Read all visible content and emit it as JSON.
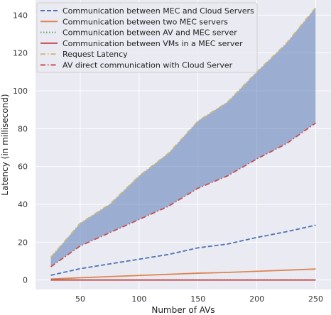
{
  "chart_data": {
    "type": "line",
    "title": "",
    "xlabel": "Number of AVs",
    "ylabel": "Latency (in millisecond)",
    "xlim": [
      12,
      263
    ],
    "ylim": [
      -5,
      148
    ],
    "xticks": [
      50,
      100,
      150,
      200,
      250
    ],
    "yticks": [
      0,
      20,
      40,
      60,
      80,
      100,
      120,
      140
    ],
    "grid": true,
    "background": "#eaeaf2",
    "legend_position": "top-left",
    "fill_between": {
      "lower_series": "AV direct communication with Cloud Server",
      "upper_series": "Request Latency",
      "color": "#4c72b0",
      "opacity": 0.5
    },
    "x": [
      25,
      50,
      75,
      100,
      125,
      150,
      175,
      200,
      225,
      250
    ],
    "series": [
      {
        "name": "Communication between MEC and Cloud Servers",
        "color": "#4c72b0",
        "style": "dashed",
        "values": [
          2.5,
          6,
          8.5,
          11,
          13.5,
          17,
          19,
          22.5,
          25.5,
          29
        ]
      },
      {
        "name": "Communication between two MEC servers",
        "color": "#dd8452",
        "style": "solid",
        "values": [
          0.5,
          1.2,
          1.8,
          2.4,
          3,
          3.6,
          4,
          4.6,
          5.2,
          5.8
        ]
      },
      {
        "name": "Communication between AV and MEC server",
        "color": "#55a868",
        "style": "dotted",
        "values": [
          0.1,
          0.1,
          0.1,
          0.1,
          0.1,
          0.1,
          0.1,
          0.1,
          0.1,
          0.1
        ]
      },
      {
        "name": "Communication between VMs in a MEC server",
        "color": "#c44e52",
        "style": "solid",
        "values": [
          0,
          0,
          0,
          0,
          0,
          0,
          0,
          0,
          0,
          0
        ]
      },
      {
        "name": "Request Latency",
        "color": "#ccb974",
        "style": "dashdot",
        "values": [
          12,
          30,
          40,
          55,
          67,
          84,
          94,
          110,
          125,
          144
        ]
      },
      {
        "name": "AV direct communication with Cloud Server",
        "color": "#c44e52",
        "style": "dashdot",
        "values": [
          7,
          18,
          25,
          32,
          39,
          48.5,
          55,
          64,
          72,
          83
        ]
      }
    ]
  }
}
